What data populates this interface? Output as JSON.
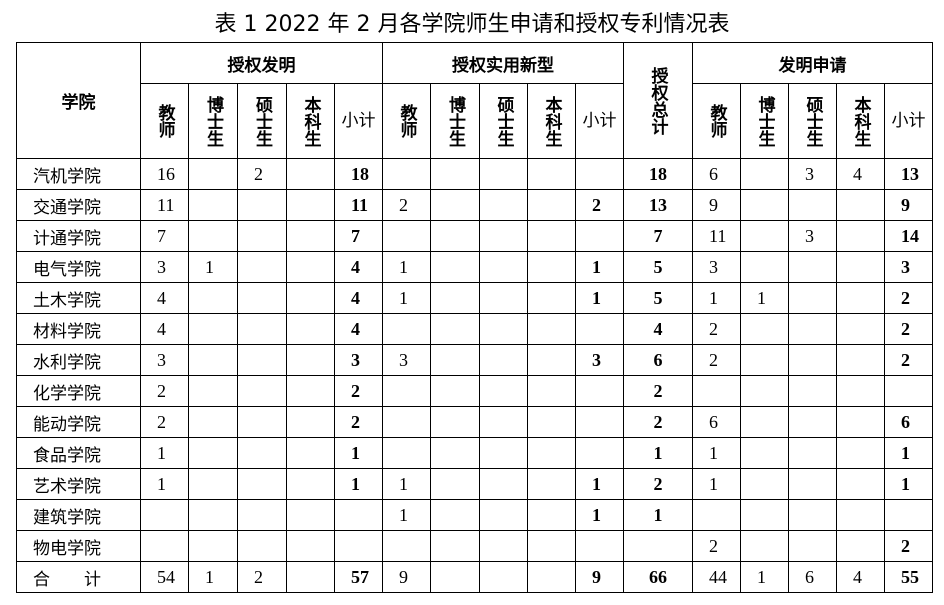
{
  "title": "表 1 2022 年 2 月各学院师生申请和授权专利情况表",
  "headers": {
    "college": "学院",
    "group1": "授权发明",
    "group2": "授权实用新型",
    "total": "授权总计",
    "group3": "发明申请",
    "sub": [
      "教师",
      "博士生",
      "硕士生",
      "本科生",
      "小计"
    ]
  },
  "rows": [
    {
      "name": "汽机学院",
      "cells": [
        "16",
        "",
        "2",
        "",
        "18",
        "",
        "",
        "",
        "",
        "",
        "18",
        "6",
        "",
        "3",
        "4",
        "13"
      ]
    },
    {
      "name": "交通学院",
      "cells": [
        "11",
        "",
        "",
        "",
        "11",
        "2",
        "",
        "",
        "",
        "2",
        "13",
        "9",
        "",
        "",
        "",
        "9"
      ]
    },
    {
      "name": "计通学院",
      "cells": [
        "7",
        "",
        "",
        "",
        "7",
        "",
        "",
        "",
        "",
        "",
        "7",
        "11",
        "",
        "3",
        "",
        "14"
      ]
    },
    {
      "name": "电气学院",
      "cells": [
        "3",
        "1",
        "",
        "",
        "4",
        "1",
        "",
        "",
        "",
        "1",
        "5",
        "3",
        "",
        "",
        "",
        "3"
      ]
    },
    {
      "name": "土木学院",
      "cells": [
        "4",
        "",
        "",
        "",
        "4",
        "1",
        "",
        "",
        "",
        "1",
        "5",
        "1",
        "1",
        "",
        "",
        "2"
      ]
    },
    {
      "name": "材料学院",
      "cells": [
        "4",
        "",
        "",
        "",
        "4",
        "",
        "",
        "",
        "",
        "",
        "4",
        "2",
        "",
        "",
        "",
        "2"
      ]
    },
    {
      "name": "水利学院",
      "cells": [
        "3",
        "",
        "",
        "",
        "3",
        "3",
        "",
        "",
        "",
        "3",
        "6",
        "2",
        "",
        "",
        "",
        "2"
      ]
    },
    {
      "name": "化学学院",
      "cells": [
        "2",
        "",
        "",
        "",
        "2",
        "",
        "",
        "",
        "",
        "",
        "2",
        "",
        "",
        "",
        "",
        ""
      ]
    },
    {
      "name": "能动学院",
      "cells": [
        "2",
        "",
        "",
        "",
        "2",
        "",
        "",
        "",
        "",
        "",
        "2",
        "6",
        "",
        "",
        "",
        "6"
      ]
    },
    {
      "name": "食品学院",
      "cells": [
        "1",
        "",
        "",
        "",
        "1",
        "",
        "",
        "",
        "",
        "",
        "1",
        "1",
        "",
        "",
        "",
        "1"
      ]
    },
    {
      "name": "艺术学院",
      "cells": [
        "1",
        "",
        "",
        "",
        "1",
        "1",
        "",
        "",
        "",
        "1",
        "2",
        "1",
        "",
        "",
        "",
        "1"
      ]
    },
    {
      "name": "建筑学院",
      "cells": [
        "",
        "",
        "",
        "",
        "",
        "1",
        "",
        "",
        "",
        "1",
        "1",
        "",
        "",
        "",
        "",
        ""
      ]
    },
    {
      "name": "物电学院",
      "cells": [
        "",
        "",
        "",
        "",
        "",
        "",
        "",
        "",
        "",
        "",
        "",
        "2",
        "",
        "",
        "",
        "2"
      ]
    },
    {
      "name": "合　　计",
      "cells": [
        "54",
        "1",
        "2",
        "",
        "57",
        "9",
        "",
        "",
        "",
        "9",
        "66",
        "44",
        "1",
        "6",
        "4",
        "55"
      ]
    }
  ]
}
